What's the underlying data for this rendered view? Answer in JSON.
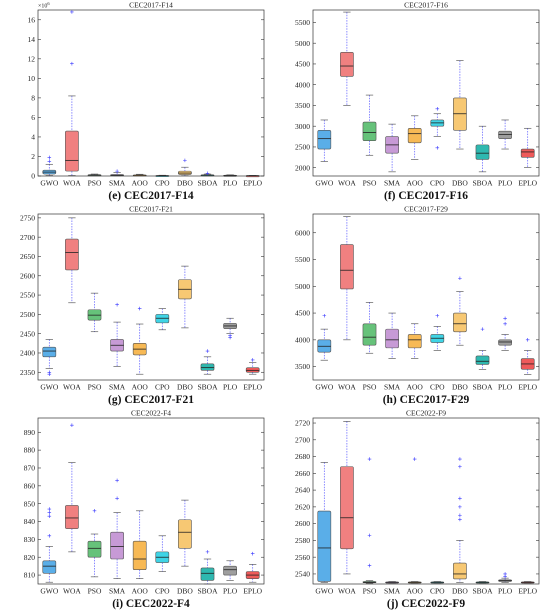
{
  "algorithms": [
    "GWO",
    "WOA",
    "PSO",
    "SMA",
    "AOO",
    "CPO",
    "DBO",
    "SBOA",
    "PLO",
    "EPLO"
  ],
  "colors": {
    "GWO": "#5aaee8",
    "WOA": "#f08080",
    "PSO": "#66c27a",
    "SMA": "#c79ad6",
    "AOO": "#f7b955",
    "CPO": "#3fd4e6",
    "DBO": "#f7c873",
    "SBOA": "#2fb8b0",
    "PLO": "#9e9e9e",
    "EPLO": "#ee5a5a"
  },
  "chart_data": [
    {
      "id": "e",
      "type": "box",
      "title": "CEC2017-F14",
      "caption_letter": "(e)",
      "caption_text": "CEC2017-F14",
      "ylim": [
        0,
        17
      ],
      "yticks": [
        0,
        2,
        4,
        6,
        8,
        10,
        12,
        14,
        16
      ],
      "multiplier": "×10",
      "multiplier_exp": "6",
      "boxes": [
        {
          "min": 0.05,
          "q1": 0.2,
          "median": 0.4,
          "q3": 0.6,
          "max": 1.2,
          "outliers": [
            1.5,
            1.9
          ]
        },
        {
          "min": 0.05,
          "q1": 0.5,
          "median": 1.6,
          "q3": 4.6,
          "max": 8.2,
          "outliers": [
            11.5,
            16.8
          ]
        },
        {
          "min": 0.03,
          "q1": 0.06,
          "median": 0.09,
          "q3": 0.13,
          "max": 0.2,
          "outliers": []
        },
        {
          "min": 0.02,
          "q1": 0.05,
          "median": 0.08,
          "q3": 0.15,
          "max": 0.35,
          "outliers": [
            0.5
          ]
        },
        {
          "min": 0.02,
          "q1": 0.04,
          "median": 0.07,
          "q3": 0.11,
          "max": 0.18,
          "outliers": []
        },
        {
          "min": 0.01,
          "q1": 0.02,
          "median": 0.03,
          "q3": 0.05,
          "max": 0.08,
          "outliers": []
        },
        {
          "min": 0.03,
          "q1": 0.15,
          "median": 0.3,
          "q3": 0.5,
          "max": 0.9,
          "outliers": [
            1.6
          ]
        },
        {
          "min": 0.02,
          "q1": 0.05,
          "median": 0.08,
          "q3": 0.12,
          "max": 0.2,
          "outliers": [
            0.28
          ]
        },
        {
          "min": 0.01,
          "q1": 0.03,
          "median": 0.05,
          "q3": 0.08,
          "max": 0.12,
          "outliers": []
        },
        {
          "min": 0.01,
          "q1": 0.02,
          "median": 0.03,
          "q3": 0.04,
          "max": 0.06,
          "outliers": []
        }
      ]
    },
    {
      "id": "f",
      "type": "box",
      "title": "CEC2017-F16",
      "caption_letter": "(f)",
      "caption_text": "CEC2017-F16",
      "ylim": [
        1800,
        5800
      ],
      "yticks": [
        2000,
        2500,
        3000,
        3500,
        4000,
        4500,
        5000,
        5500
      ],
      "boxes": [
        {
          "min": 2150,
          "q1": 2450,
          "median": 2700,
          "q3": 2900,
          "max": 3150,
          "outliers": []
        },
        {
          "min": 3500,
          "q1": 4200,
          "median": 4450,
          "q3": 4780,
          "max": 5750,
          "outliers": []
        },
        {
          "min": 2300,
          "q1": 2650,
          "median": 2850,
          "q3": 3100,
          "max": 3750,
          "outliers": []
        },
        {
          "min": 1900,
          "q1": 2350,
          "median": 2550,
          "q3": 2750,
          "max": 3050,
          "outliers": []
        },
        {
          "min": 2200,
          "q1": 2600,
          "median": 2820,
          "q3": 2950,
          "max": 3250,
          "outliers": []
        },
        {
          "min": 2750,
          "q1": 3000,
          "median": 3080,
          "q3": 3150,
          "max": 3300,
          "outliers": [
            2480,
            3420
          ]
        },
        {
          "min": 2450,
          "q1": 2900,
          "median": 3300,
          "q3": 3680,
          "max": 4580,
          "outliers": []
        },
        {
          "min": 1900,
          "q1": 2200,
          "median": 2350,
          "q3": 2550,
          "max": 3000,
          "outliers": []
        },
        {
          "min": 2450,
          "q1": 2700,
          "median": 2800,
          "q3": 2880,
          "max": 3150,
          "outliers": []
        },
        {
          "min": 2000,
          "q1": 2250,
          "median": 2380,
          "q3": 2450,
          "max": 2950,
          "outliers": []
        }
      ]
    },
    {
      "id": "g",
      "type": "box",
      "title": "CEC2017-F21",
      "caption_letter": "(g)",
      "caption_text": "CEC2017-F21",
      "ylim": [
        2330,
        2760
      ],
      "yticks": [
        2350,
        2400,
        2450,
        2500,
        2550,
        2600,
        2650,
        2700,
        2750
      ],
      "boxes": [
        {
          "min": 2360,
          "q1": 2390,
          "median": 2405,
          "q3": 2415,
          "max": 2435,
          "outliers": [
            2350,
            2345
          ]
        },
        {
          "min": 2530,
          "q1": 2615,
          "median": 2660,
          "q3": 2695,
          "max": 2750,
          "outliers": []
        },
        {
          "min": 2455,
          "q1": 2485,
          "median": 2498,
          "q3": 2512,
          "max": 2555,
          "outliers": []
        },
        {
          "min": 2365,
          "q1": 2405,
          "median": 2420,
          "q3": 2435,
          "max": 2480,
          "outliers": [
            2525
          ]
        },
        {
          "min": 2345,
          "q1": 2395,
          "median": 2410,
          "q3": 2425,
          "max": 2475,
          "outliers": [
            2515
          ]
        },
        {
          "min": 2460,
          "q1": 2478,
          "median": 2490,
          "q3": 2500,
          "max": 2515,
          "outliers": []
        },
        {
          "min": 2465,
          "q1": 2540,
          "median": 2565,
          "q3": 2590,
          "max": 2625,
          "outliers": []
        },
        {
          "min": 2345,
          "q1": 2355,
          "median": 2362,
          "q3": 2372,
          "max": 2390,
          "outliers": [
            2405
          ]
        },
        {
          "min": 2450,
          "q1": 2463,
          "median": 2470,
          "q3": 2477,
          "max": 2490,
          "outliers": [
            2440,
            2445
          ]
        },
        {
          "min": 2345,
          "q1": 2350,
          "median": 2355,
          "q3": 2362,
          "max": 2375,
          "outliers": [
            2382
          ]
        }
      ]
    },
    {
      "id": "h",
      "type": "box",
      "title": "CEC2017-F29",
      "caption_letter": "(h)",
      "caption_text": "CEC2017-F29",
      "ylim": [
        3250,
        6350
      ],
      "yticks": [
        3500,
        4000,
        4500,
        5000,
        5500,
        6000
      ],
      "boxes": [
        {
          "min": 3620,
          "q1": 3770,
          "median": 3880,
          "q3": 4000,
          "max": 4200,
          "outliers": [
            4450
          ]
        },
        {
          "min": 4000,
          "q1": 4950,
          "median": 5300,
          "q3": 5780,
          "max": 6300,
          "outliers": []
        },
        {
          "min": 3750,
          "q1": 3900,
          "median": 4050,
          "q3": 4300,
          "max": 4700,
          "outliers": []
        },
        {
          "min": 3650,
          "q1": 3850,
          "median": 4000,
          "q3": 4200,
          "max": 4500,
          "outliers": []
        },
        {
          "min": 3650,
          "q1": 3850,
          "median": 4000,
          "q3": 4100,
          "max": 4300,
          "outliers": []
        },
        {
          "min": 3800,
          "q1": 3950,
          "median": 4030,
          "q3": 4100,
          "max": 4250,
          "outliers": [
            4450
          ]
        },
        {
          "min": 3900,
          "q1": 4150,
          "median": 4300,
          "q3": 4500,
          "max": 4900,
          "outliers": [
            5150
          ]
        },
        {
          "min": 3450,
          "q1": 3540,
          "median": 3600,
          "q3": 3700,
          "max": 3800,
          "outliers": [
            4200
          ]
        },
        {
          "min": 3800,
          "q1": 3900,
          "median": 3960,
          "q3": 4000,
          "max": 4100,
          "outliers": [
            4300,
            4400
          ]
        },
        {
          "min": 3350,
          "q1": 3450,
          "median": 3550,
          "q3": 3650,
          "max": 3800,
          "outliers": [
            4000
          ]
        }
      ]
    },
    {
      "id": "i",
      "type": "box",
      "title": "CEC2022-F4",
      "caption_letter": "(i)",
      "caption_text": "CEC2022-F4",
      "ylim": [
        805,
        898
      ],
      "yticks": [
        810,
        820,
        830,
        840,
        850,
        860,
        870,
        880,
        890
      ],
      "boxes": [
        {
          "min": 806,
          "q1": 811,
          "median": 815,
          "q3": 818,
          "max": 826,
          "outliers": [
            832,
            843,
            845,
            847
          ]
        },
        {
          "min": 823,
          "q1": 836,
          "median": 842,
          "q3": 849,
          "max": 873,
          "outliers": [
            894
          ]
        },
        {
          "min": 809,
          "q1": 820,
          "median": 825,
          "q3": 829,
          "max": 833,
          "outliers": [
            846
          ]
        },
        {
          "min": 808,
          "q1": 819,
          "median": 826,
          "q3": 834,
          "max": 845,
          "outliers": [
            853,
            863
          ]
        },
        {
          "min": 808,
          "q1": 813,
          "median": 819,
          "q3": 829,
          "max": 846,
          "outliers": []
        },
        {
          "min": 812,
          "q1": 817,
          "median": 820,
          "q3": 823,
          "max": 832,
          "outliers": []
        },
        {
          "min": 815,
          "q1": 825,
          "median": 834,
          "q3": 841,
          "max": 852,
          "outliers": []
        },
        {
          "min": 805,
          "q1": 807,
          "median": 811,
          "q3": 814,
          "max": 819,
          "outliers": [
            823
          ]
        },
        {
          "min": 807,
          "q1": 810,
          "median": 813,
          "q3": 815,
          "max": 818,
          "outliers": []
        },
        {
          "min": 806,
          "q1": 808,
          "median": 810,
          "q3": 812,
          "max": 816,
          "outliers": [
            822
          ]
        }
      ]
    },
    {
      "id": "j",
      "type": "box",
      "title": "CEC2022-F9",
      "caption_letter": "(j)",
      "caption_text": "CEC2022-F9",
      "ylim": [
        2528,
        2726
      ],
      "yticks": [
        2540,
        2560,
        2580,
        2600,
        2620,
        2640,
        2660,
        2680,
        2700,
        2720
      ],
      "boxes": [
        {
          "min": 2530,
          "q1": 2531,
          "median": 2571,
          "q3": 2615,
          "max": 2673,
          "outliers": []
        },
        {
          "min": 2540,
          "q1": 2570,
          "median": 2607,
          "q3": 2668,
          "max": 2722,
          "outliers": []
        },
        {
          "min": 2529,
          "q1": 2530,
          "median": 2530,
          "q3": 2531,
          "max": 2532,
          "outliers": [
            2550,
            2586,
            2677
          ]
        },
        {
          "min": 2529,
          "q1": 2529.5,
          "median": 2530,
          "q3": 2530.5,
          "max": 2531,
          "outliers": []
        },
        {
          "min": 2529,
          "q1": 2529.5,
          "median": 2530,
          "q3": 2530.5,
          "max": 2531,
          "outliers": [
            2677
          ]
        },
        {
          "min": 2529,
          "q1": 2529.5,
          "median": 2530,
          "q3": 2530.5,
          "max": 2531,
          "outliers": []
        },
        {
          "min": 2530,
          "q1": 2534,
          "median": 2540,
          "q3": 2553,
          "max": 2580,
          "outliers": [
            2605,
            2610,
            2620,
            2630,
            2668,
            2677
          ]
        },
        {
          "min": 2529,
          "q1": 2529.5,
          "median": 2530,
          "q3": 2530.5,
          "max": 2531,
          "outliers": []
        },
        {
          "min": 2530,
          "q1": 2531,
          "median": 2532,
          "q3": 2533,
          "max": 2535,
          "outliers": [
            2537,
            2540
          ]
        },
        {
          "min": 2529,
          "q1": 2529.5,
          "median": 2530,
          "q3": 2530.5,
          "max": 2531,
          "outliers": []
        }
      ]
    }
  ]
}
